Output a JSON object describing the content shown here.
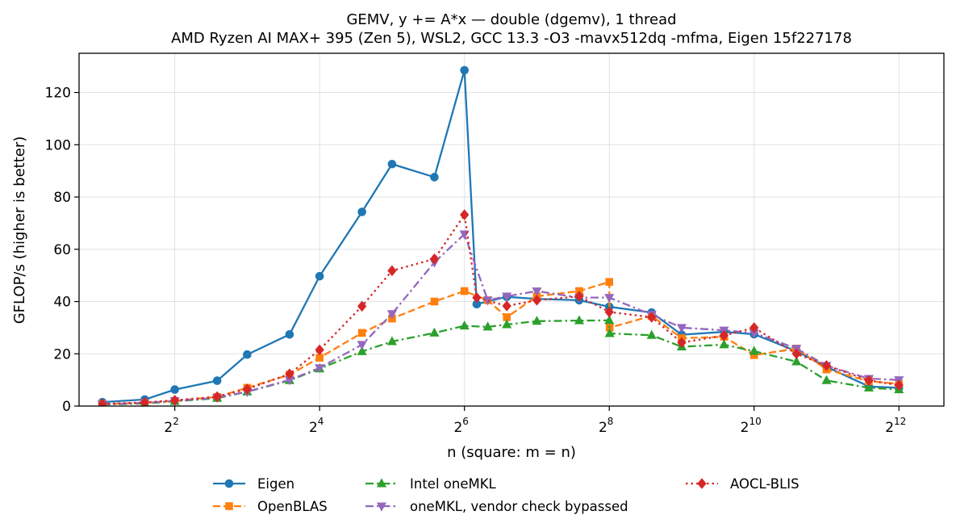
{
  "chart_data": {
    "type": "line",
    "title": "GEMV, y += A*x — double (dgemv), 1 thread",
    "subtitle": "AMD Ryzen AI MAX+ 395 (Zen 5), WSL2, GCC 13.3 -O3 -mavx512dq -mfma, Eigen 15f227178",
    "xlabel": "n (square: m = n)",
    "ylabel": "GFLOP/s (higher is better)",
    "xscale": "log2",
    "xlim": [
      1.6,
      6300
    ],
    "ylim": [
      0,
      135
    ],
    "x_ticks": [
      {
        "value": 4,
        "base": "2",
        "exp": "2"
      },
      {
        "value": 16,
        "base": "2",
        "exp": "4"
      },
      {
        "value": 64,
        "base": "2",
        "exp": "6"
      },
      {
        "value": 256,
        "base": "2",
        "exp": "8"
      },
      {
        "value": 1024,
        "base": "2",
        "exp": "10"
      },
      {
        "value": 4096,
        "base": "2",
        "exp": "12"
      }
    ],
    "y_ticks": [
      0,
      20,
      40,
      60,
      80,
      100,
      120
    ],
    "grid": true,
    "legend_position": "bottom",
    "series": [
      {
        "name": "Eigen",
        "color": "#1f77b4",
        "linestyle": "solid",
        "marker": "circle",
        "x": [
          2,
          3,
          4,
          6,
          8,
          12,
          16,
          24,
          32,
          48,
          64,
          72,
          96,
          128,
          192,
          256,
          384,
          512,
          768,
          1024,
          1536,
          2048,
          3072,
          4096
        ],
        "y": [
          1.5,
          2.5,
          6.3,
          9.7,
          19.7,
          27.4,
          49.7,
          74.3,
          92.6,
          87.6,
          128.5,
          39.0,
          41.8,
          41.0,
          40.5,
          38.0,
          35.8,
          27.3,
          28.4,
          27.5,
          21.0,
          15.0,
          7.5,
          7.0
        ]
      },
      {
        "name": "OpenBLAS",
        "color": "#ff7f0e",
        "linestyle": "dashed",
        "marker": "square",
        "x": [
          2,
          3,
          4,
          6,
          8,
          12,
          16,
          24,
          32,
          48,
          64,
          80,
          96,
          128,
          192,
          256,
          257,
          384,
          512,
          768,
          1024,
          1536,
          2048,
          3072,
          4096
        ],
        "y": [
          0.8,
          1.2,
          2.0,
          3.5,
          7.0,
          12.0,
          18.5,
          28.0,
          33.5,
          40.0,
          44.0,
          40.5,
          34.0,
          42.0,
          44.0,
          47.5,
          30.0,
          34.5,
          26.0,
          26.5,
          19.5,
          22.0,
          14.0,
          9.5,
          8.5
        ]
      },
      {
        "name": "Intel oneMKL",
        "color": "#2ca02c",
        "linestyle": "dashdot",
        "marker": "triangle-up",
        "x": [
          2,
          3,
          4,
          6,
          8,
          12,
          16,
          24,
          32,
          48,
          64,
          80,
          96,
          128,
          192,
          256,
          257,
          384,
          512,
          768,
          1024,
          1536,
          2048,
          3072,
          4096
        ],
        "y": [
          0.6,
          1.0,
          1.8,
          3.0,
          5.5,
          9.8,
          14.3,
          20.9,
          24.7,
          28.0,
          30.7,
          30.3,
          31.2,
          32.5,
          32.7,
          32.8,
          27.8,
          27.1,
          22.7,
          23.5,
          21.0,
          17.0,
          9.8,
          7.0,
          6.3
        ]
      },
      {
        "name": "oneMKL, vendor check bypassed",
        "color": "#9467bd",
        "linestyle": "dashdot",
        "marker": "triangle-down",
        "x": [
          2,
          3,
          4,
          6,
          8,
          12,
          16,
          24,
          32,
          48,
          64,
          80,
          96,
          128,
          192,
          256,
          384,
          512,
          768,
          1024,
          1536,
          2048,
          3072,
          4096
        ],
        "y": [
          0.7,
          1.2,
          2.0,
          3.2,
          5.5,
          10.0,
          14.6,
          23.5,
          35.3,
          55.0,
          65.8,
          40.5,
          42.0,
          44.0,
          41.5,
          41.5,
          35.0,
          30.0,
          29.0,
          28.0,
          22.0,
          15.5,
          10.5,
          10.0
        ]
      },
      {
        "name": "AOCL-BLIS",
        "color": "#d62728",
        "linestyle": "dotted",
        "marker": "diamond",
        "x": [
          2,
          3,
          4,
          6,
          8,
          12,
          16,
          24,
          32,
          48,
          64,
          72,
          96,
          128,
          192,
          256,
          384,
          512,
          768,
          1024,
          1536,
          2048,
          3072,
          4096
        ],
        "y": [
          0.8,
          1.4,
          2.2,
          3.6,
          6.5,
          12.3,
          21.5,
          38.2,
          51.8,
          56.3,
          73.2,
          41.5,
          38.3,
          40.5,
          42.0,
          36.0,
          34.0,
          24.3,
          27.0,
          30.0,
          20.0,
          15.5,
          9.8,
          8.0
        ]
      }
    ]
  }
}
